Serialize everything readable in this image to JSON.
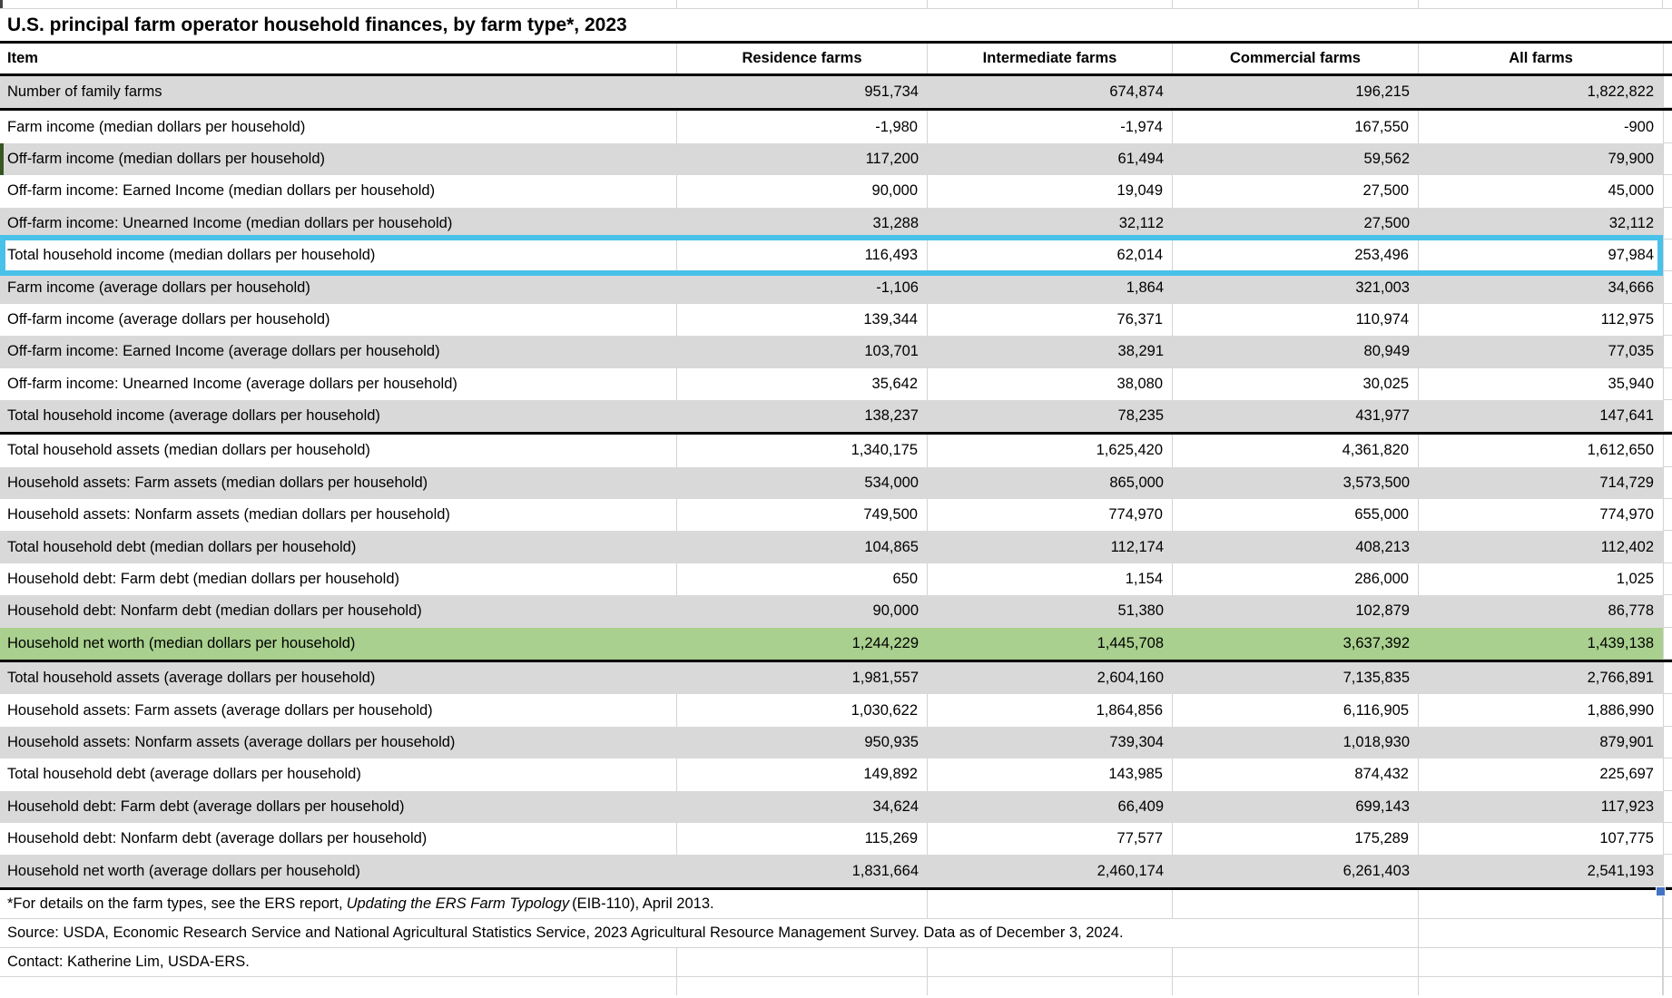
{
  "sheet": {
    "title": "U.S. principal farm operator household finances, by farm type*, 2023",
    "columns": [
      "Item",
      "Residence farms",
      "Intermediate farms",
      "Commercial farms",
      "All farms"
    ],
    "rows": [
      {
        "label": "Number of family farms",
        "values": [
          "951,734",
          "674,874",
          "196,215",
          "1,822,822"
        ],
        "fill": "gray",
        "thick_bottom": true
      },
      {
        "label": "Farm income (median dollars per household)",
        "values": [
          "-1,980",
          "-1,974",
          "167,550",
          "-900"
        ],
        "fill": "white"
      },
      {
        "label": "Off-farm income (median dollars per household)",
        "values": [
          "117,200",
          "61,494",
          "59,562",
          "79,900"
        ],
        "fill": "gray",
        "left_marker": true
      },
      {
        "label": "Off-farm income: Earned Income (median dollars per household)",
        "values": [
          "90,000",
          "19,049",
          "27,500",
          "45,000"
        ],
        "fill": "white"
      },
      {
        "label": "Off-farm income: Unearned Income (median dollars per household)",
        "values": [
          "31,288",
          "32,112",
          "27,500",
          "32,112"
        ],
        "fill": "gray"
      },
      {
        "label": "Total household income (median dollars per household)",
        "values": [
          "116,493",
          "62,014",
          "253,496",
          "97,984"
        ],
        "fill": "white",
        "selected": true
      },
      {
        "label": "Farm income (average dollars per household)",
        "values": [
          "-1,106",
          "1,864",
          "321,003",
          "34,666"
        ],
        "fill": "gray"
      },
      {
        "label": "Off-farm income (average dollars per household)",
        "values": [
          "139,344",
          "76,371",
          "110,974",
          "112,975"
        ],
        "fill": "white"
      },
      {
        "label": "Off-farm income: Earned Income (average dollars per household)",
        "values": [
          "103,701",
          "38,291",
          "80,949",
          "77,035"
        ],
        "fill": "gray"
      },
      {
        "label": "Off-farm income: Unearned Income (average dollars per household)",
        "values": [
          "35,642",
          "38,080",
          "30,025",
          "35,940"
        ],
        "fill": "white"
      },
      {
        "label": "Total household income (average dollars per household)",
        "values": [
          "138,237",
          "78,235",
          "431,977",
          "147,641"
        ],
        "fill": "gray",
        "thick_bottom": true
      },
      {
        "label": "Total household assets (median dollars per household)",
        "values": [
          "1,340,175",
          "1,625,420",
          "4,361,820",
          "1,612,650"
        ],
        "fill": "white"
      },
      {
        "label": "Household assets: Farm assets (median dollars per household)",
        "values": [
          "534,000",
          "865,000",
          "3,573,500",
          "714,729"
        ],
        "fill": "gray"
      },
      {
        "label": "Household assets: Nonfarm assets (median dollars per household)",
        "values": [
          "749,500",
          "774,970",
          "655,000",
          "774,970"
        ],
        "fill": "white"
      },
      {
        "label": "Total household debt (median dollars per household)",
        "values": [
          "104,865",
          "112,174",
          "408,213",
          "112,402"
        ],
        "fill": "gray"
      },
      {
        "label": "Household debt: Farm debt (median dollars per household)",
        "values": [
          "650",
          "1,154",
          "286,000",
          "1,025"
        ],
        "fill": "white"
      },
      {
        "label": "Household debt: Nonfarm debt (median dollars per household)",
        "values": [
          "90,000",
          "51,380",
          "102,879",
          "86,778"
        ],
        "fill": "gray"
      },
      {
        "label": "Household net worth (median dollars per household)",
        "values": [
          "1,244,229",
          "1,445,708",
          "3,637,392",
          "1,439,138"
        ],
        "fill": "green",
        "thick_bottom": true
      },
      {
        "label": "Total household assets (average dollars per household)",
        "values": [
          "1,981,557",
          "2,604,160",
          "7,135,835",
          "2,766,891"
        ],
        "fill": "gray"
      },
      {
        "label": "Household assets: Farm assets (average dollars per household)",
        "values": [
          "1,030,622",
          "1,864,856",
          "6,116,905",
          "1,886,990"
        ],
        "fill": "white"
      },
      {
        "label": "Household assets: Nonfarm assets (average dollars per household)",
        "values": [
          "950,935",
          "739,304",
          "1,018,930",
          "879,901"
        ],
        "fill": "gray"
      },
      {
        "label": "Total household debt (average dollars per household)",
        "values": [
          "149,892",
          "143,985",
          "874,432",
          "225,697"
        ],
        "fill": "white"
      },
      {
        "label": "Household debt: Farm debt (average dollars per household)",
        "values": [
          "34,624",
          "66,409",
          "699,143",
          "117,923"
        ],
        "fill": "gray"
      },
      {
        "label": "Household debt: Nonfarm debt (average dollars per household)",
        "values": [
          "115,269",
          "77,577",
          "175,289",
          "107,775"
        ],
        "fill": "white"
      },
      {
        "label": "Household net worth (average dollars per household)",
        "values": [
          "1,831,664",
          "2,460,174",
          "6,261,403",
          "2,541,193"
        ],
        "fill": "gray",
        "thick_bottom": true
      }
    ],
    "footnote_prefix": "*For details on the farm types, see the ERS report,",
    "footnote_italic": "Updating the ERS Farm Typology",
    "footnote_suffix": " (EIB-110), April 2013.",
    "source": "Source: USDA, Economic Research Service and National Agricultural Statistics Service, 2023 Agricultural Resource Management Survey. Data as of December 3, 2024.",
    "contact": "Contact: Katherine Lim, USDA-ERS.",
    "colors": {
      "stripe_gray": "#d9d9d9",
      "highlight_green": "#a9d08e",
      "selection_blue": "#49c1e9",
      "row_marker_green": "#375623",
      "fill_handle_blue": "#4472c4"
    }
  }
}
